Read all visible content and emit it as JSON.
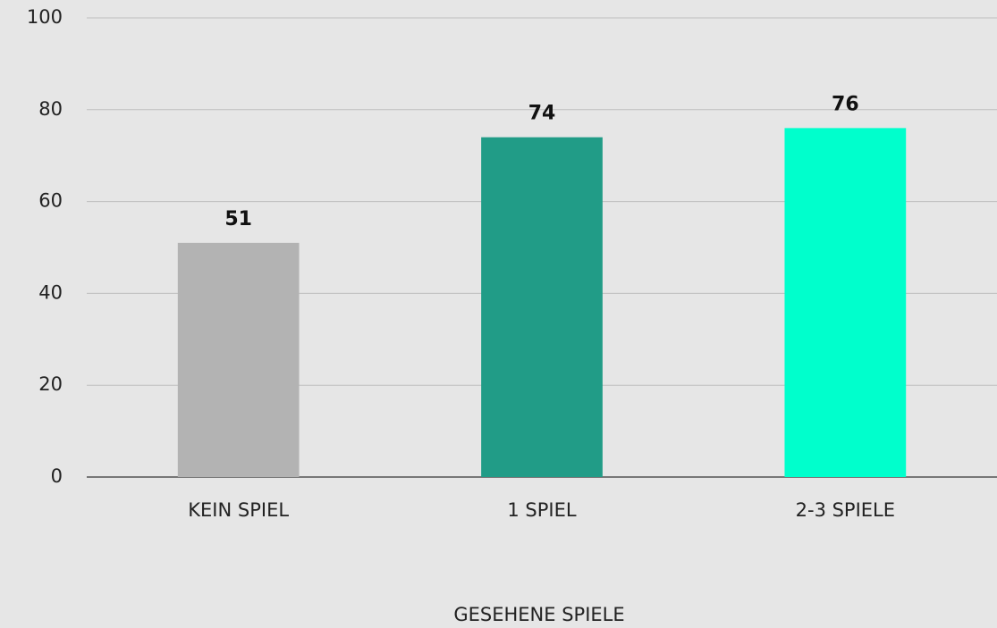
{
  "chart_data": {
    "type": "bar",
    "categories": [
      "KEIN SPIEL",
      "1 SPIEL",
      "2-3 SPIELE"
    ],
    "values": [
      51,
      74,
      76
    ],
    "colors": [
      "#b3b3b3",
      "#219c87",
      "#00ffcc"
    ],
    "xlabel": "GESEHENE SPIELE",
    "ylim": [
      0,
      100
    ],
    "yticks": [
      0,
      20,
      40,
      60,
      80,
      100
    ],
    "grid": true
  }
}
